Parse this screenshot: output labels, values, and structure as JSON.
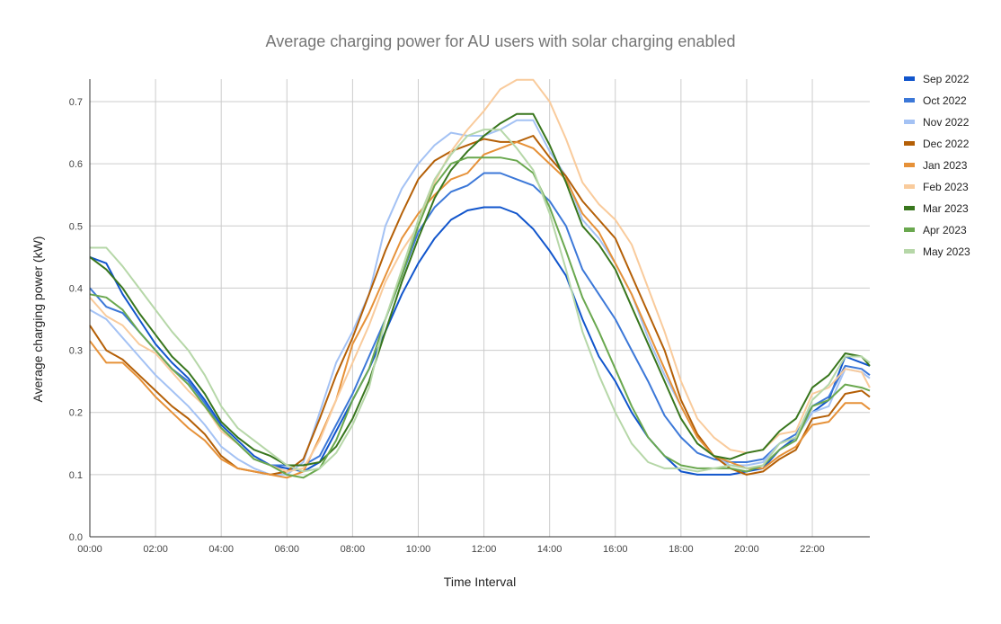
{
  "chart_data": {
    "type": "line",
    "title": "Average charging power for AU users with solar charging enabled",
    "xlabel": "Time Interval",
    "ylabel": "Average charging power (kW)",
    "ylim": [
      0,
      0.735
    ],
    "yticks": [
      "0.0",
      "0.1",
      "0.2",
      "0.3",
      "0.4",
      "0.5",
      "0.6",
      "0.7"
    ],
    "xticks": [
      "00:00",
      "02:00",
      "04:00",
      "06:00",
      "08:00",
      "10:00",
      "12:00",
      "14:00",
      "16:00",
      "18:00",
      "20:00",
      "22:00"
    ],
    "grid": true,
    "legend_position": "right",
    "x": [
      "00:00",
      "00:30",
      "01:00",
      "01:30",
      "02:00",
      "02:30",
      "03:00",
      "03:30",
      "04:00",
      "04:30",
      "05:00",
      "05:30",
      "06:00",
      "06:30",
      "07:00",
      "07:30",
      "08:00",
      "08:30",
      "09:00",
      "09:30",
      "10:00",
      "10:30",
      "11:00",
      "11:30",
      "12:00",
      "12:30",
      "13:00",
      "13:30",
      "14:00",
      "14:30",
      "15:00",
      "15:30",
      "16:00",
      "16:30",
      "17:00",
      "17:30",
      "18:00",
      "18:30",
      "19:00",
      "19:30",
      "20:00",
      "20:30",
      "21:00",
      "21:30",
      "22:00",
      "22:30",
      "23:00",
      "23:30",
      "23:45"
    ],
    "series": [
      {
        "name": "Sep 2022",
        "color": "#1155cc",
        "values": [
          0.45,
          0.44,
          0.39,
          0.35,
          0.31,
          0.28,
          0.255,
          0.22,
          0.18,
          0.155,
          0.13,
          0.115,
          0.11,
          0.105,
          0.12,
          0.17,
          0.22,
          0.27,
          0.33,
          0.39,
          0.44,
          0.48,
          0.51,
          0.525,
          0.53,
          0.53,
          0.52,
          0.495,
          0.46,
          0.42,
          0.35,
          0.29,
          0.25,
          0.2,
          0.16,
          0.13,
          0.105,
          0.1,
          0.1,
          0.1,
          0.105,
          0.11,
          0.14,
          0.16,
          0.2,
          0.22,
          0.29,
          0.28,
          0.275
        ]
      },
      {
        "name": "Oct 2022",
        "color": "#3c78d8",
        "values": [
          0.4,
          0.37,
          0.36,
          0.33,
          0.3,
          0.27,
          0.25,
          0.215,
          0.175,
          0.15,
          0.125,
          0.115,
          0.115,
          0.115,
          0.13,
          0.18,
          0.23,
          0.29,
          0.35,
          0.42,
          0.49,
          0.53,
          0.555,
          0.565,
          0.585,
          0.585,
          0.575,
          0.565,
          0.54,
          0.5,
          0.43,
          0.39,
          0.35,
          0.3,
          0.25,
          0.195,
          0.16,
          0.135,
          0.125,
          0.12,
          0.12,
          0.125,
          0.15,
          0.165,
          0.21,
          0.225,
          0.275,
          0.27,
          0.26
        ]
      },
      {
        "name": "Nov 2022",
        "color": "#a4c2f4",
        "values": [
          0.365,
          0.35,
          0.32,
          0.29,
          0.26,
          0.235,
          0.21,
          0.18,
          0.145,
          0.125,
          0.11,
          0.1,
          0.1,
          0.12,
          0.2,
          0.28,
          0.33,
          0.39,
          0.5,
          0.56,
          0.6,
          0.63,
          0.65,
          0.645,
          0.645,
          0.655,
          0.67,
          0.67,
          0.62,
          0.58,
          0.51,
          0.48,
          0.44,
          0.39,
          0.32,
          0.26,
          0.21,
          0.16,
          0.13,
          0.115,
          0.115,
          0.12,
          0.15,
          0.16,
          0.2,
          0.21,
          0.27,
          0.265,
          0.255
        ]
      },
      {
        "name": "Dec 2022",
        "color": "#b45f06",
        "values": [
          0.34,
          0.3,
          0.285,
          0.26,
          0.235,
          0.21,
          0.19,
          0.165,
          0.13,
          0.11,
          0.105,
          0.1,
          0.105,
          0.125,
          0.19,
          0.26,
          0.32,
          0.39,
          0.46,
          0.52,
          0.575,
          0.605,
          0.62,
          0.63,
          0.64,
          0.635,
          0.635,
          0.645,
          0.61,
          0.58,
          0.54,
          0.51,
          0.48,
          0.42,
          0.36,
          0.3,
          0.22,
          0.165,
          0.13,
          0.11,
          0.1,
          0.105,
          0.125,
          0.14,
          0.19,
          0.195,
          0.23,
          0.235,
          0.225
        ]
      },
      {
        "name": "Jan 2023",
        "color": "#e69138",
        "values": [
          0.315,
          0.28,
          0.28,
          0.255,
          0.225,
          0.2,
          0.175,
          0.155,
          0.125,
          0.11,
          0.105,
          0.1,
          0.095,
          0.105,
          0.16,
          0.22,
          0.31,
          0.36,
          0.42,
          0.48,
          0.52,
          0.55,
          0.575,
          0.585,
          0.615,
          0.625,
          0.635,
          0.625,
          0.6,
          0.575,
          0.52,
          0.49,
          0.44,
          0.39,
          0.33,
          0.27,
          0.21,
          0.16,
          0.13,
          0.12,
          0.11,
          0.11,
          0.13,
          0.145,
          0.18,
          0.185,
          0.215,
          0.215,
          0.205
        ]
      },
      {
        "name": "Feb 2023",
        "color": "#f9cb9c",
        "values": [
          0.385,
          0.355,
          0.34,
          0.31,
          0.295,
          0.265,
          0.235,
          0.21,
          0.17,
          0.15,
          0.125,
          0.115,
          0.105,
          0.11,
          0.155,
          0.22,
          0.28,
          0.34,
          0.41,
          0.46,
          0.5,
          0.57,
          0.62,
          0.655,
          0.685,
          0.72,
          0.735,
          0.735,
          0.7,
          0.64,
          0.57,
          0.535,
          0.51,
          0.47,
          0.4,
          0.33,
          0.25,
          0.19,
          0.16,
          0.14,
          0.135,
          0.14,
          0.165,
          0.17,
          0.23,
          0.24,
          0.27,
          0.265,
          0.24
        ]
      },
      {
        "name": "Mar 2023",
        "color": "#38761d",
        "values": [
          0.45,
          0.43,
          0.4,
          0.36,
          0.325,
          0.29,
          0.265,
          0.23,
          0.185,
          0.16,
          0.14,
          0.13,
          0.115,
          0.115,
          0.12,
          0.145,
          0.19,
          0.25,
          0.33,
          0.41,
          0.48,
          0.545,
          0.59,
          0.62,
          0.645,
          0.665,
          0.68,
          0.68,
          0.63,
          0.57,
          0.5,
          0.47,
          0.43,
          0.37,
          0.31,
          0.25,
          0.19,
          0.15,
          0.13,
          0.125,
          0.135,
          0.14,
          0.17,
          0.19,
          0.24,
          0.26,
          0.295,
          0.29,
          0.275
        ]
      },
      {
        "name": "Apr 2023",
        "color": "#6aa84f",
        "values": [
          0.39,
          0.385,
          0.365,
          0.33,
          0.3,
          0.27,
          0.245,
          0.21,
          0.175,
          0.15,
          0.125,
          0.115,
          0.1,
          0.095,
          0.11,
          0.155,
          0.22,
          0.27,
          0.35,
          0.42,
          0.5,
          0.565,
          0.6,
          0.61,
          0.61,
          0.61,
          0.605,
          0.585,
          0.53,
          0.46,
          0.385,
          0.33,
          0.27,
          0.21,
          0.16,
          0.13,
          0.115,
          0.11,
          0.11,
          0.11,
          0.105,
          0.115,
          0.14,
          0.155,
          0.21,
          0.22,
          0.245,
          0.24,
          0.235
        ]
      },
      {
        "name": "May 2023",
        "color": "#b6d7a8",
        "values": [
          0.465,
          0.465,
          0.435,
          0.4,
          0.365,
          0.33,
          0.3,
          0.26,
          0.21,
          0.175,
          0.155,
          0.135,
          0.115,
          0.105,
          0.11,
          0.135,
          0.18,
          0.24,
          0.35,
          0.43,
          0.51,
          0.575,
          0.615,
          0.645,
          0.655,
          0.655,
          0.625,
          0.59,
          0.52,
          0.43,
          0.33,
          0.26,
          0.2,
          0.15,
          0.12,
          0.11,
          0.11,
          0.105,
          0.11,
          0.115,
          0.11,
          0.115,
          0.15,
          0.16,
          0.22,
          0.245,
          0.29,
          0.29,
          0.28
        ]
      }
    ]
  }
}
